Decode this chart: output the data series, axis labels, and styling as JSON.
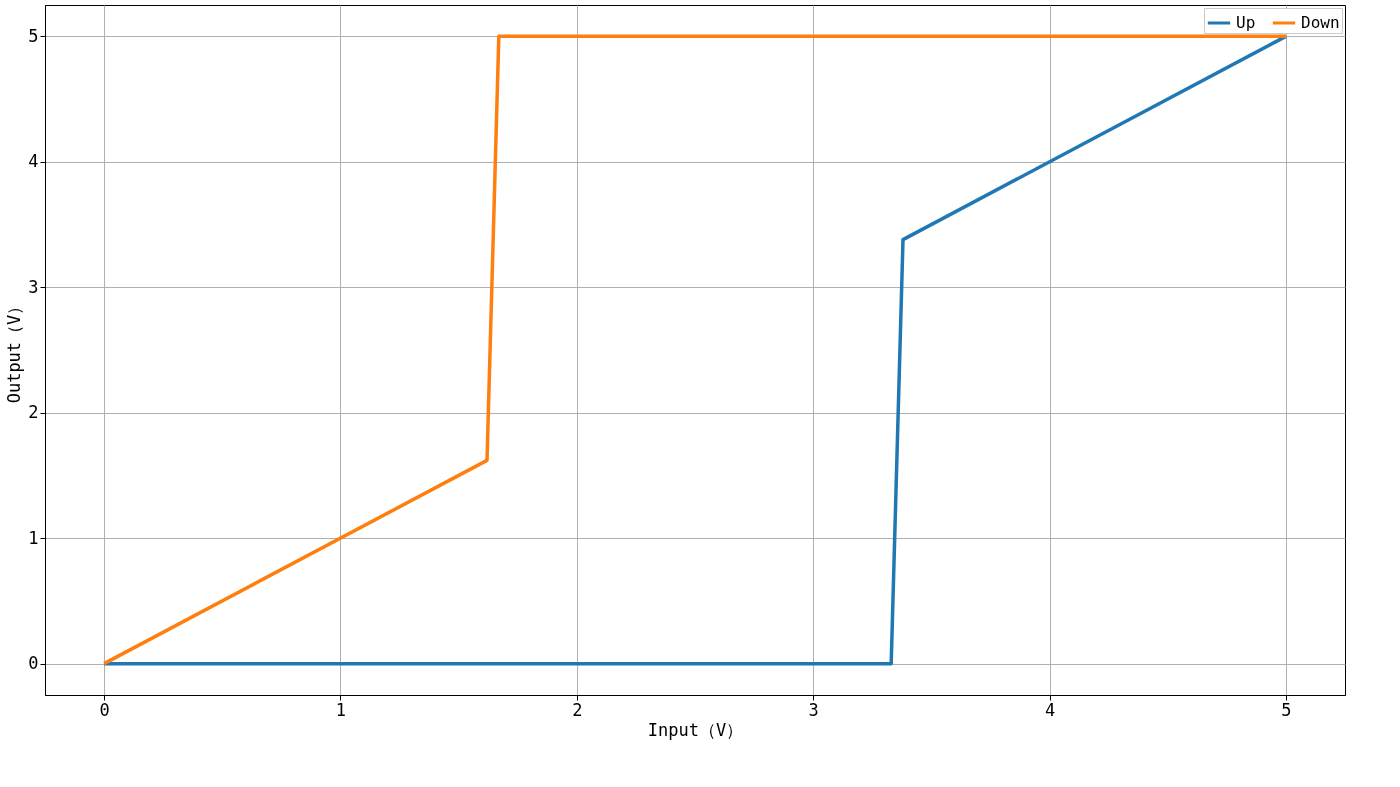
{
  "chart_data": {
    "type": "line",
    "xlabel": "Input（V）",
    "ylabel": "Output（V）",
    "series": [
      {
        "name": "Up",
        "color": "#1f77b4",
        "x": [
          0,
          3.33,
          3.38,
          5
        ],
        "values": [
          0,
          0,
          3.38,
          5
        ]
      },
      {
        "name": "Down",
        "color": "#ff7f0e",
        "x": [
          0,
          1.62,
          1.67,
          5
        ],
        "values": [
          0,
          1.62,
          5,
          5
        ]
      }
    ],
    "xlim": [
      -0.25,
      5.25
    ],
    "ylim": [
      -0.25,
      5.25
    ],
    "xticks": [
      0,
      1,
      2,
      3,
      4,
      5
    ],
    "yticks": [
      0,
      1,
      2,
      3,
      4,
      5
    ],
    "grid": true,
    "legend": "top right",
    "marker": "none",
    "line_style": "solid"
  }
}
